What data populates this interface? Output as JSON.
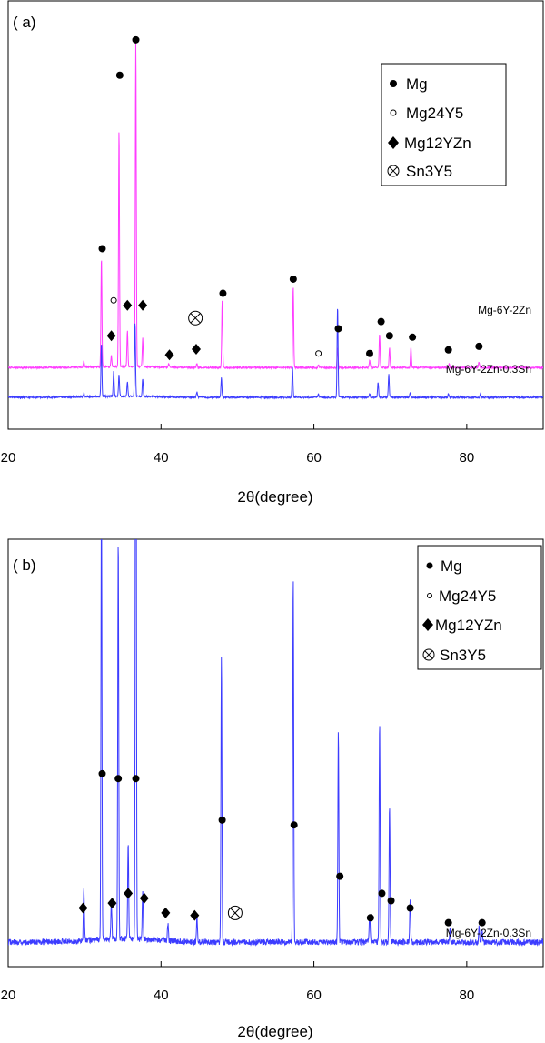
{
  "chart_data": [
    {
      "type": "line",
      "panel_label": "( a)",
      "xlabel": "2θ(degree)",
      "ylabel": "",
      "xlim": [
        20,
        90
      ],
      "xticks": [
        20,
        40,
        60,
        80
      ],
      "grid": false,
      "legend_position": "top-right",
      "legend": [
        {
          "marker": "filled-circle",
          "label": "Mg"
        },
        {
          "marker": "open-circle",
          "label": "Mg24Y5"
        },
        {
          "marker": "diamond",
          "label": "Mg12YZn"
        },
        {
          "marker": "circle-x",
          "label": "Sn3Y5"
        }
      ],
      "series": [
        {
          "name": "Mg-6Y-2Zn",
          "color": "#ff3cff",
          "baseline": 0.42,
          "noise": 0.012,
          "peaks": [
            [
              29.9,
              0.08
            ],
            [
              32.2,
              1.55
            ],
            [
              33.5,
              0.16
            ],
            [
              34.5,
              3.35
            ],
            [
              35.6,
              0.5
            ],
            [
              36.7,
              4.6
            ],
            [
              37.6,
              0.4
            ],
            [
              41.0,
              0.05
            ],
            [
              44.7,
              0.06
            ],
            [
              48.0,
              0.95
            ],
            [
              57.3,
              1.15
            ],
            [
              60.6,
              0.05
            ],
            [
              63.1,
              0.28
            ],
            [
              67.3,
              0.1
            ],
            [
              68.6,
              0.48
            ],
            [
              69.9,
              0.28
            ],
            [
              72.7,
              0.28
            ],
            [
              77.7,
              0.05
            ],
            [
              81.6,
              0.08
            ]
          ],
          "markers": [
            {
              "type": "filled-circle",
              "x": 32.3,
              "y": 2.1
            },
            {
              "type": "filled-circle",
              "x": 34.6,
              "y": 4.55
            },
            {
              "type": "filled-circle",
              "x": 36.7,
              "y": 5.05
            },
            {
              "type": "filled-circle",
              "x": 48.1,
              "y": 1.47
            },
            {
              "type": "filled-circle",
              "x": 57.3,
              "y": 1.67
            },
            {
              "type": "filled-circle",
              "x": 63.2,
              "y": 0.97
            },
            {
              "type": "filled-circle",
              "x": 67.3,
              "y": 0.62
            },
            {
              "type": "filled-circle",
              "x": 68.8,
              "y": 1.07
            },
            {
              "type": "filled-circle",
              "x": 69.9,
              "y": 0.87
            },
            {
              "type": "filled-circle",
              "x": 72.9,
              "y": 0.85
            },
            {
              "type": "filled-circle",
              "x": 77.6,
              "y": 0.67
            },
            {
              "type": "filled-circle",
              "x": 81.6,
              "y": 0.72
            },
            {
              "type": "open-circle",
              "x": 33.8,
              "y": 1.37
            },
            {
              "type": "open-circle",
              "x": 60.6,
              "y": 0.62
            },
            {
              "type": "diamond",
              "x": 33.5,
              "y": 0.87
            },
            {
              "type": "diamond",
              "x": 35.6,
              "y": 1.3
            },
            {
              "type": "diamond",
              "x": 37.6,
              "y": 1.3
            },
            {
              "type": "diamond",
              "x": 41.1,
              "y": 0.6
            },
            {
              "type": "diamond",
              "x": 44.6,
              "y": 0.68
            },
            {
              "type": "circle-x",
              "x": 44.5,
              "y": 1.12
            }
          ]
        },
        {
          "name": "Mg-6Y-2Zn-0.3Sn",
          "color": "#3c3cff",
          "baseline": 0.0,
          "noise": 0.012,
          "peaks": [
            [
              29.9,
              0.05
            ],
            [
              32.2,
              0.75
            ],
            [
              33.8,
              0.35
            ],
            [
              34.5,
              0.3
            ],
            [
              35.6,
              0.2
            ],
            [
              36.6,
              1.05
            ],
            [
              37.6,
              0.25
            ],
            [
              44.7,
              0.08
            ],
            [
              47.9,
              0.28
            ],
            [
              57.2,
              0.42
            ],
            [
              60.6,
              0.05
            ],
            [
              63.1,
              1.28
            ],
            [
              67.3,
              0.06
            ],
            [
              68.4,
              0.22
            ],
            [
              69.8,
              0.32
            ],
            [
              72.6,
              0.07
            ],
            [
              77.6,
              0.05
            ],
            [
              81.8,
              0.05
            ]
          ],
          "markers": []
        }
      ],
      "y_range": [
        -0.45,
        5.6
      ]
    },
    {
      "type": "line",
      "panel_label": "( b)",
      "xlabel": "2θ(degree)",
      "ylabel": "",
      "xlim": [
        20,
        90
      ],
      "xticks": [
        20,
        40,
        60,
        80
      ],
      "grid": false,
      "legend_position": "top-right",
      "legend": [
        {
          "marker": "filled-circle",
          "label": "Mg"
        },
        {
          "marker": "open-circle",
          "label": "Mg24Y5"
        },
        {
          "marker": "diamond",
          "label": "Mg12YZn"
        },
        {
          "marker": "circle-x",
          "label": "Sn3Y5"
        }
      ],
      "series": [
        {
          "name": "Mg-6Y-2Zn-0.3Sn",
          "color": "#3c3cff",
          "baseline": 0.0,
          "noise": 0.012,
          "peaks": [
            [
              29.9,
              0.22
            ],
            [
              32.2,
              1.87
            ],
            [
              33.5,
              0.15
            ],
            [
              34.4,
              1.65
            ],
            [
              35.7,
              0.4
            ],
            [
              36.7,
              3.5
            ],
            [
              37.6,
              0.2
            ],
            [
              40.9,
              0.07
            ],
            [
              44.7,
              0.1
            ],
            [
              47.9,
              1.18
            ],
            [
              57.3,
              1.5
            ],
            [
              63.2,
              0.86
            ],
            [
              67.3,
              0.12
            ],
            [
              68.6,
              0.9
            ],
            [
              69.9,
              0.56
            ],
            [
              72.6,
              0.17
            ],
            [
              77.8,
              0.05
            ],
            [
              81.6,
              0.06
            ],
            [
              82.0,
              0.05
            ]
          ],
          "markers": [
            {
              "type": "filled-circle",
              "x": 32.3,
              "y": 0.69
            },
            {
              "type": "filled-circle",
              "x": 34.4,
              "y": 0.67
            },
            {
              "type": "filled-circle",
              "x": 36.7,
              "y": 0.67
            },
            {
              "type": "filled-circle",
              "x": 48.0,
              "y": 0.5
            },
            {
              "type": "filled-circle",
              "x": 57.4,
              "y": 0.48
            },
            {
              "type": "filled-circle",
              "x": 63.4,
              "y": 0.27
            },
            {
              "type": "filled-circle",
              "x": 67.4,
              "y": 0.1
            },
            {
              "type": "filled-circle",
              "x": 68.9,
              "y": 0.2
            },
            {
              "type": "filled-circle",
              "x": 70.1,
              "y": 0.17
            },
            {
              "type": "filled-circle",
              "x": 72.6,
              "y": 0.14
            },
            {
              "type": "filled-circle",
              "x": 77.6,
              "y": 0.08
            },
            {
              "type": "filled-circle",
              "x": 82.0,
              "y": 0.08
            },
            {
              "type": "diamond",
              "x": 29.8,
              "y": 0.14
            },
            {
              "type": "diamond",
              "x": 33.6,
              "y": 0.16
            },
            {
              "type": "diamond",
              "x": 35.7,
              "y": 0.2
            },
            {
              "type": "diamond",
              "x": 37.8,
              "y": 0.18
            },
            {
              "type": "diamond",
              "x": 40.6,
              "y": 0.12
            },
            {
              "type": "diamond",
              "x": 44.4,
              "y": 0.11
            },
            {
              "type": "circle-x",
              "x": 49.7,
              "y": 0.12
            }
          ]
        }
      ],
      "y_range": [
        -0.1,
        1.65
      ]
    }
  ]
}
